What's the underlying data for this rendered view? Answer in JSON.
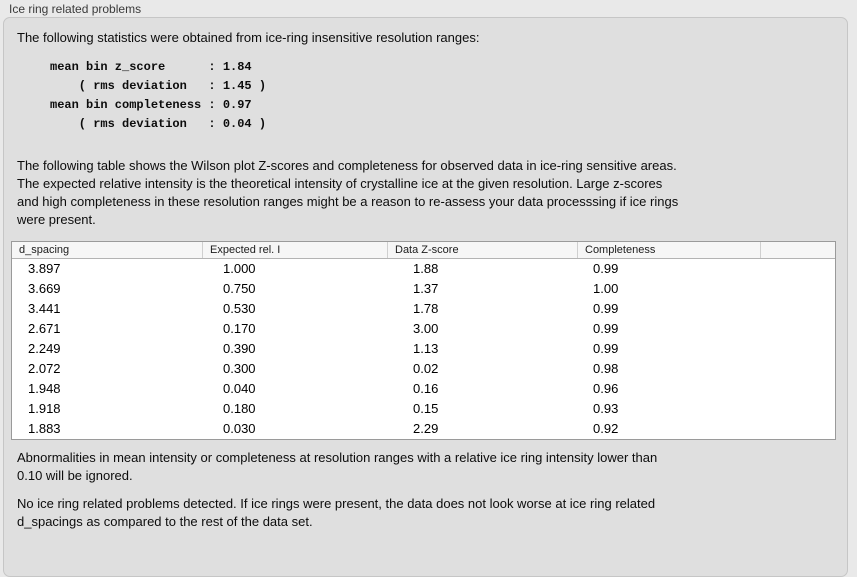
{
  "panel": {
    "title": "Ice ring related problems"
  },
  "intro": {
    "text": "The following statistics were obtained from ice-ring insensitive resolution ranges:"
  },
  "stats_block": {
    "text": "mean bin z_score      : 1.84\n    ( rms deviation   : 1.45 )\nmean bin completeness : 0.97\n    ( rms deviation   : 0.04 )",
    "values": {
      "mean_bin_z_score": "1.84",
      "z_score_rms_deviation": "1.45",
      "mean_bin_completeness": "0.97",
      "completeness_rms_deviation": "0.04"
    }
  },
  "table_description": {
    "text": "The following table shows the Wilson plot Z-scores and completeness for observed data in ice-ring sensitive areas.\nThe expected relative intensity is the theoretical intensity of crystalline ice at the given resolution. Large z-scores\nand high completeness in these resolution ranges might be a reason to re-assess your data processsing if ice rings\nwere present."
  },
  "table": {
    "columns": [
      "d_spacing",
      "Expected rel. I",
      "Data Z-score",
      "Completeness",
      ""
    ],
    "rows": [
      [
        "3.897",
        "1.000",
        "1.88",
        "0.99"
      ],
      [
        "3.669",
        "0.750",
        "1.37",
        "1.00"
      ],
      [
        "3.441",
        "0.530",
        "1.78",
        "0.99"
      ],
      [
        "2.671",
        "0.170",
        "3.00",
        "0.99"
      ],
      [
        "2.249",
        "0.390",
        "1.13",
        "0.99"
      ],
      [
        "2.072",
        "0.300",
        "0.02",
        "0.98"
      ],
      [
        "1.948",
        "0.040",
        "0.16",
        "0.96"
      ],
      [
        "1.918",
        "0.180",
        "0.15",
        "0.93"
      ],
      [
        "1.883",
        "0.030",
        "2.29",
        "0.92"
      ]
    ]
  },
  "notes": {
    "ignore_note": "Abnormalities in mean intensity or completeness at resolution ranges with a relative ice ring intensity lower than\n0.10 will be ignored.",
    "conclusion": "No ice ring related problems detected. If ice rings were present, the data does not look worse at ice ring related\nd_spacings as compared to the rest of the data set."
  },
  "colors": {
    "page_background": "#e9e9e9",
    "groupbox_background": "#dfdfdf",
    "groupbox_border": "#c6c6c6",
    "table_background": "#ffffff",
    "table_border": "#9a9a9a",
    "header_background": "#f6f6f6",
    "text": "#0c0c0c"
  }
}
